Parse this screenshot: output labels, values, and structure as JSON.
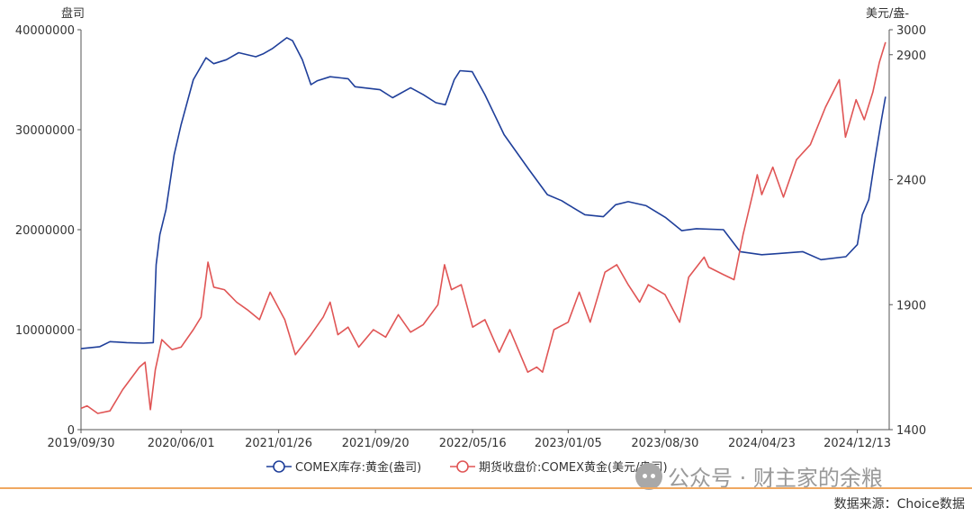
{
  "chart_data": {
    "type": "line",
    "left_axis": {
      "unit": "盘司",
      "min": 0,
      "max": 40000000,
      "ticks": [
        "0",
        "10000000",
        "20000000",
        "30000000",
        "40000000"
      ]
    },
    "right_axis": {
      "unit": "美元/盎-",
      "min": 1400,
      "max": 3000,
      "ticks": [
        "1400",
        "1900",
        "2400",
        "2900",
        "3000"
      ]
    },
    "x_axis": {
      "ticks": [
        "2019/09/30",
        "2020/06/01",
        "2021/01/26",
        "2021/09/20",
        "2022/05/16",
        "2023/01/05",
        "2023/08/30",
        "2024/04/23",
        "2024/12/13"
      ],
      "start": "2019/09/30",
      "end": "2025/03/01"
    },
    "series": [
      {
        "name": "COMEX库存:黄金(盎司)",
        "axis": "left",
        "color": "#1f3f9a",
        "points": [
          [
            "2019/09/30",
            8100000
          ],
          [
            "2019/11/15",
            8300000
          ],
          [
            "2019/12/10",
            8800000
          ],
          [
            "2020/01/20",
            8700000
          ],
          [
            "2020/03/01",
            8650000
          ],
          [
            "2020/03/25",
            8700000
          ],
          [
            "2020/04/01",
            16500000
          ],
          [
            "2020/04/10",
            19500000
          ],
          [
            "2020/04/25",
            22000000
          ],
          [
            "2020/05/15",
            27500000
          ],
          [
            "2020/06/01",
            30500000
          ],
          [
            "2020/07/01",
            35000000
          ],
          [
            "2020/08/01",
            37200000
          ],
          [
            "2020/08/20",
            36600000
          ],
          [
            "2020/09/20",
            37000000
          ],
          [
            "2020/10/20",
            37700000
          ],
          [
            "2020/12/01",
            37300000
          ],
          [
            "2020/12/20",
            37600000
          ],
          [
            "2021/01/10",
            38100000
          ],
          [
            "2021/02/15",
            39200000
          ],
          [
            "2021/03/01",
            38900000
          ],
          [
            "2021/03/25",
            37000000
          ],
          [
            "2021/04/15",
            34500000
          ],
          [
            "2021/05/01",
            34900000
          ],
          [
            "2021/06/01",
            35300000
          ],
          [
            "2021/07/15",
            35100000
          ],
          [
            "2021/08/01",
            34300000
          ],
          [
            "2021/10/01",
            34000000
          ],
          [
            "2021/11/01",
            33200000
          ],
          [
            "2021/12/15",
            34200000
          ],
          [
            "2022/01/15",
            33500000
          ],
          [
            "2022/02/15",
            32700000
          ],
          [
            "2022/03/10",
            32500000
          ],
          [
            "2022/04/01",
            35000000
          ],
          [
            "2022/04/15",
            35900000
          ],
          [
            "2022/05/15",
            35800000
          ],
          [
            "2022/06/15",
            33500000
          ],
          [
            "2022/08/01",
            29500000
          ],
          [
            "2022/10/01",
            26000000
          ],
          [
            "2022/11/15",
            23500000
          ],
          [
            "2022/12/20",
            22900000
          ],
          [
            "2023/01/05",
            22500000
          ],
          [
            "2023/02/15",
            21500000
          ],
          [
            "2023/04/01",
            21300000
          ],
          [
            "2023/05/01",
            22500000
          ],
          [
            "2023/06/01",
            22800000
          ],
          [
            "2023/07/15",
            22400000
          ],
          [
            "2023/09/01",
            21200000
          ],
          [
            "2023/10/10",
            19900000
          ],
          [
            "2023/11/15",
            20100000
          ],
          [
            "2024/01/20",
            20000000
          ],
          [
            "2024/03/01",
            17800000
          ],
          [
            "2024/04/23",
            17500000
          ],
          [
            "2024/06/01",
            17600000
          ],
          [
            "2024/08/01",
            17800000
          ],
          [
            "2024/09/15",
            17000000
          ],
          [
            "2024/11/15",
            17300000
          ],
          [
            "2024/12/13",
            18500000
          ],
          [
            "2024/12/25",
            21500000
          ],
          [
            "2025/01/10",
            23000000
          ],
          [
            "2025/01/25",
            27000000
          ],
          [
            "2025/02/10",
            31000000
          ],
          [
            "2025/02/20",
            33300000
          ]
        ]
      },
      {
        "name": "期货收盘价:COMEX黄金(美元/盎司)",
        "axis": "right",
        "color": "#e05555",
        "points": [
          [
            "2019/09/30",
            1485
          ],
          [
            "2019/10/15",
            1495
          ],
          [
            "2019/11/10",
            1465
          ],
          [
            "2019/12/10",
            1475
          ],
          [
            "2020/01/10",
            1560
          ],
          [
            "2020/02/20",
            1650
          ],
          [
            "2020/03/05",
            1670
          ],
          [
            "2020/03/18",
            1480
          ],
          [
            "2020/03/30",
            1640
          ],
          [
            "2020/04/15",
            1760
          ],
          [
            "2020/05/10",
            1720
          ],
          [
            "2020/06/01",
            1730
          ],
          [
            "2020/07/01",
            1800
          ],
          [
            "2020/07/20",
            1850
          ],
          [
            "2020/08/06",
            2070
          ],
          [
            "2020/08/20",
            1970
          ],
          [
            "2020/09/15",
            1960
          ],
          [
            "2020/10/15",
            1910
          ],
          [
            "2020/11/10",
            1880
          ],
          [
            "2020/12/10",
            1840
          ],
          [
            "2021/01/05",
            1950
          ],
          [
            "2021/02/10",
            1840
          ],
          [
            "2021/03/08",
            1700
          ],
          [
            "2021/04/15",
            1780
          ],
          [
            "2021/05/15",
            1850
          ],
          [
            "2021/06/01",
            1910
          ],
          [
            "2021/06/20",
            1780
          ],
          [
            "2021/07/15",
            1810
          ],
          [
            "2021/08/10",
            1730
          ],
          [
            "2021/09/15",
            1800
          ],
          [
            "2021/10/15",
            1770
          ],
          [
            "2021/11/15",
            1860
          ],
          [
            "2021/12/15",
            1790
          ],
          [
            "2022/01/15",
            1820
          ],
          [
            "2022/02/20",
            1900
          ],
          [
            "2022/03/08",
            2060
          ],
          [
            "2022/03/25",
            1960
          ],
          [
            "2022/04/18",
            1980
          ],
          [
            "2022/05/16",
            1810
          ],
          [
            "2022/06/15",
            1840
          ],
          [
            "2022/07/20",
            1710
          ],
          [
            "2022/08/15",
            1800
          ],
          [
            "2022/09/28",
            1630
          ],
          [
            "2022/10/20",
            1650
          ],
          [
            "2022/11/03",
            1630
          ],
          [
            "2022/12/01",
            1800
          ],
          [
            "2023/01/05",
            1830
          ],
          [
            "2023/02/01",
            1950
          ],
          [
            "2023/02/28",
            1830
          ],
          [
            "2023/04/05",
            2030
          ],
          [
            "2023/05/04",
            2060
          ],
          [
            "2023/06/01",
            1980
          ],
          [
            "2023/06/29",
            1910
          ],
          [
            "2023/07/20",
            1980
          ],
          [
            "2023/08/30",
            1940
          ],
          [
            "2023/10/05",
            1830
          ],
          [
            "2023/10/27",
            2010
          ],
          [
            "2023/12/04",
            2090
          ],
          [
            "2023/12/15",
            2050
          ],
          [
            "2024/01/20",
            2020
          ],
          [
            "2024/02/15",
            2000
          ],
          [
            "2024/03/08",
            2180
          ],
          [
            "2024/04/12",
            2420
          ],
          [
            "2024/04/23",
            2340
          ],
          [
            "2024/05/20",
            2450
          ],
          [
            "2024/06/15",
            2330
          ],
          [
            "2024/07/17",
            2480
          ],
          [
            "2024/08/20",
            2540
          ],
          [
            "2024/09/26",
            2690
          ],
          [
            "2024/10/30",
            2800
          ],
          [
            "2024/11/14",
            2570
          ],
          [
            "2024/12/10",
            2720
          ],
          [
            "2024/12/30",
            2640
          ],
          [
            "2025/01/20",
            2750
          ],
          [
            "2025/02/05",
            2870
          ],
          [
            "2025/02/20",
            2950
          ]
        ]
      }
    ],
    "legend_placement": "bottom",
    "grid": false
  },
  "watermark": {
    "text": "公众号 · 财主家的余粮"
  },
  "source": {
    "text": "数据来源：Choice数据"
  }
}
